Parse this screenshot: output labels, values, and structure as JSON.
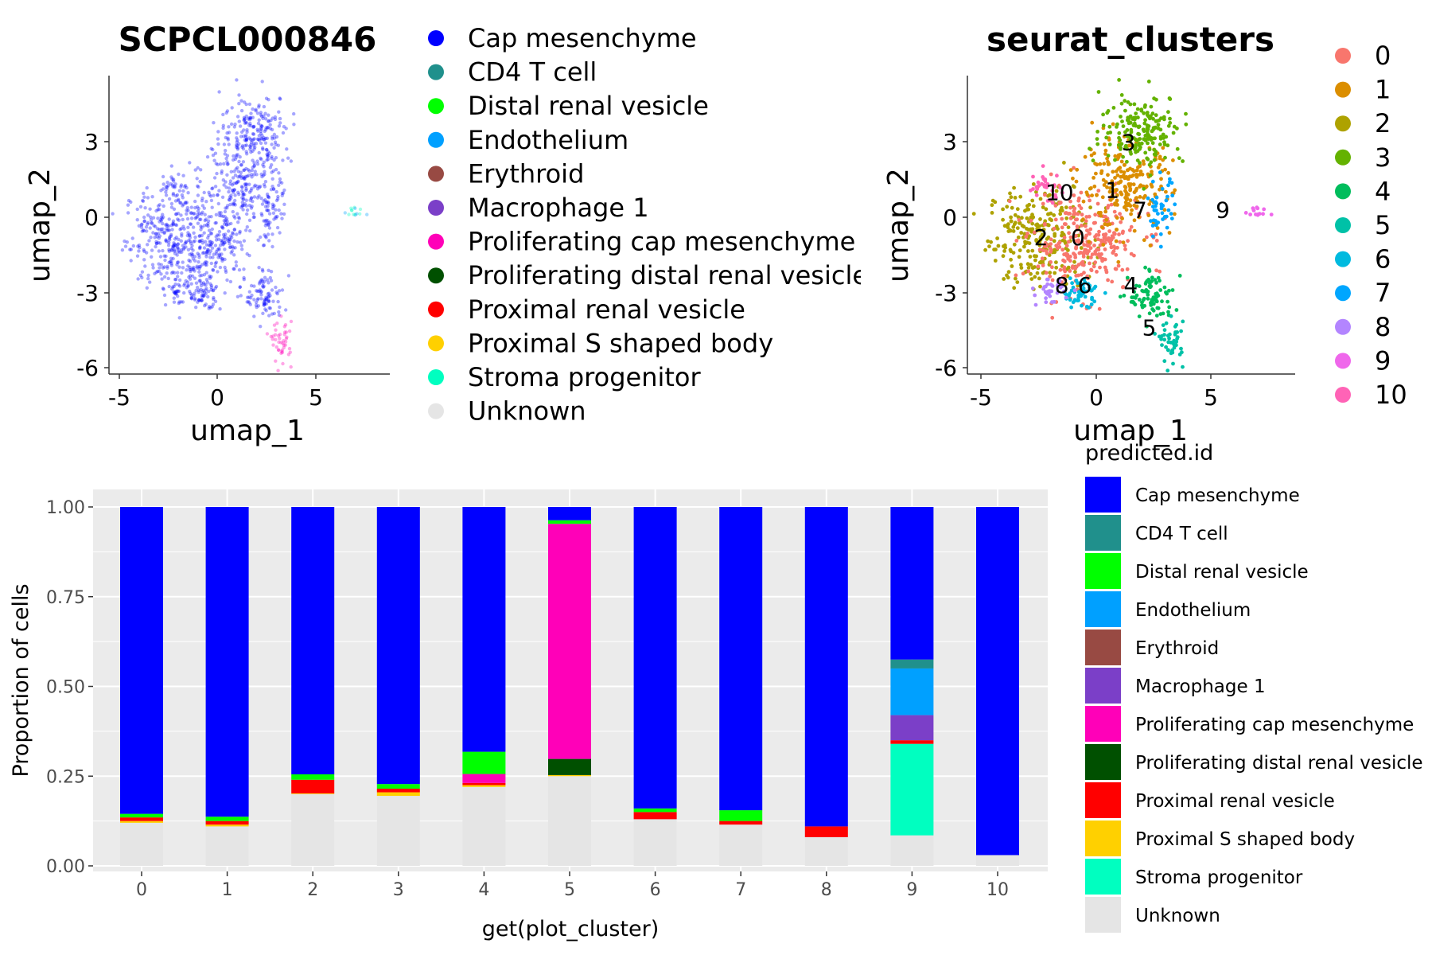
{
  "umap_left": {
    "title": "SCPCL000846",
    "xlabel": "umap_1",
    "ylabel": "umap_2",
    "xticks": [
      "-5",
      "0",
      "5"
    ],
    "yticks": [
      "3",
      "0",
      "-3",
      "-6"
    ],
    "legend": [
      {
        "label": "Cap mesenchyme",
        "color": "#0000ff"
      },
      {
        "label": "CD4 T cell",
        "color": "#20908c"
      },
      {
        "label": "Distal renal vesicle",
        "color": "#00ff00"
      },
      {
        "label": "Endothelium",
        "color": "#00a0ff"
      },
      {
        "label": "Erythroid",
        "color": "#984a43"
      },
      {
        "label": "Macrophage 1",
        "color": "#7b3fc8"
      },
      {
        "label": "Proliferating cap mesenchyme",
        "color": "#ff00b8"
      },
      {
        "label": "Proliferating distal renal vesicle",
        "color": "#005000"
      },
      {
        "label": "Proximal renal vesicle",
        "color": "#ff0000"
      },
      {
        "label": "Proximal S shaped body",
        "color": "#ffd000"
      },
      {
        "label": "Stroma progenitor",
        "color": "#00ffc0"
      },
      {
        "label": "Unknown",
        "color": "#e5e5e5"
      }
    ]
  },
  "umap_right": {
    "title": "seurat_clusters",
    "xlabel": "umap_1",
    "ylabel": "umap_2",
    "xticks": [
      "-5",
      "0",
      "5"
    ],
    "yticks": [
      "3",
      "0",
      "-3",
      "-6"
    ],
    "legend": [
      {
        "label": "0",
        "color": "#f8766d"
      },
      {
        "label": "1",
        "color": "#db8e00"
      },
      {
        "label": "2",
        "color": "#aea200"
      },
      {
        "label": "3",
        "color": "#64b200"
      },
      {
        "label": "4",
        "color": "#00bd5c"
      },
      {
        "label": "5",
        "color": "#00c1a7"
      },
      {
        "label": "6",
        "color": "#00badf"
      },
      {
        "label": "7",
        "color": "#00a6ff"
      },
      {
        "label": "8",
        "color": "#b385ff"
      },
      {
        "label": "9",
        "color": "#ef67eb"
      },
      {
        "label": "10",
        "color": "#ff63b6"
      }
    ],
    "cluster_labels": [
      "0",
      "1",
      "2",
      "3",
      "4",
      "5",
      "6",
      "7",
      "8",
      "9",
      "10"
    ]
  },
  "chart_data": {
    "type": "bar",
    "stacked": true,
    "xlabel": "get(plot_cluster)",
    "ylabel": "Proportion of cells",
    "ylim": [
      0,
      1
    ],
    "yticks": [
      "0.00",
      "0.25",
      "0.50",
      "0.75",
      "1.00"
    ],
    "legend_title": "predicted.id",
    "legend_position": "right",
    "grid": true,
    "categories": [
      "0",
      "1",
      "2",
      "3",
      "4",
      "5",
      "6",
      "7",
      "8",
      "9",
      "10"
    ],
    "series": [
      {
        "name": "Unknown",
        "color": "#e5e5e5",
        "values": [
          0.12,
          0.11,
          0.2,
          0.195,
          0.22,
          0.25,
          0.13,
          0.115,
          0.08,
          0.085,
          0.03
        ]
      },
      {
        "name": "Stroma progenitor",
        "color": "#00ffc0",
        "values": [
          0,
          0,
          0,
          0,
          0,
          0,
          0,
          0,
          0,
          0.255,
          0
        ]
      },
      {
        "name": "Proximal S shaped body",
        "color": "#ffd000",
        "values": [
          0.005,
          0.005,
          0.002,
          0.01,
          0.005,
          0.003,
          0,
          0,
          0,
          0,
          0
        ]
      },
      {
        "name": "Proximal renal vesicle",
        "color": "#ff0000",
        "values": [
          0.01,
          0.01,
          0.038,
          0.01,
          0.006,
          0,
          0.02,
          0.01,
          0.03,
          0.01,
          0
        ]
      },
      {
        "name": "Proliferating distal renal vesicle",
        "color": "#005000",
        "values": [
          0,
          0,
          0,
          0,
          0,
          0.045,
          0,
          0,
          0,
          0,
          0
        ]
      },
      {
        "name": "Proliferating cap mesenchyme",
        "color": "#ff00b8",
        "values": [
          0,
          0,
          0,
          0,
          0.025,
          0.655,
          0,
          0,
          0,
          0,
          0
        ]
      },
      {
        "name": "Macrophage 1",
        "color": "#7b3fc8",
        "values": [
          0,
          0,
          0,
          0,
          0,
          0,
          0,
          0,
          0,
          0.07,
          0
        ]
      },
      {
        "name": "Erythroid",
        "color": "#984a43",
        "values": [
          0,
          0,
          0,
          0,
          0,
          0,
          0,
          0,
          0,
          0,
          0
        ]
      },
      {
        "name": "Endothelium",
        "color": "#00a0ff",
        "values": [
          0,
          0,
          0,
          0,
          0,
          0,
          0,
          0,
          0,
          0.13,
          0
        ]
      },
      {
        "name": "Distal renal vesicle",
        "color": "#00ff00",
        "values": [
          0.01,
          0.012,
          0.015,
          0.013,
          0.062,
          0.01,
          0.01,
          0.03,
          0,
          0,
          0
        ]
      },
      {
        "name": "CD4 T cell",
        "color": "#20908c",
        "values": [
          0,
          0,
          0,
          0,
          0,
          0,
          0,
          0,
          0,
          0.025,
          0
        ]
      },
      {
        "name": "Cap mesenchyme",
        "color": "#0000ff",
        "values": [
          0.855,
          0.863,
          0.745,
          0.772,
          0.682,
          0.037,
          0.84,
          0.845,
          0.89,
          0.425,
          0.97
        ]
      }
    ]
  }
}
